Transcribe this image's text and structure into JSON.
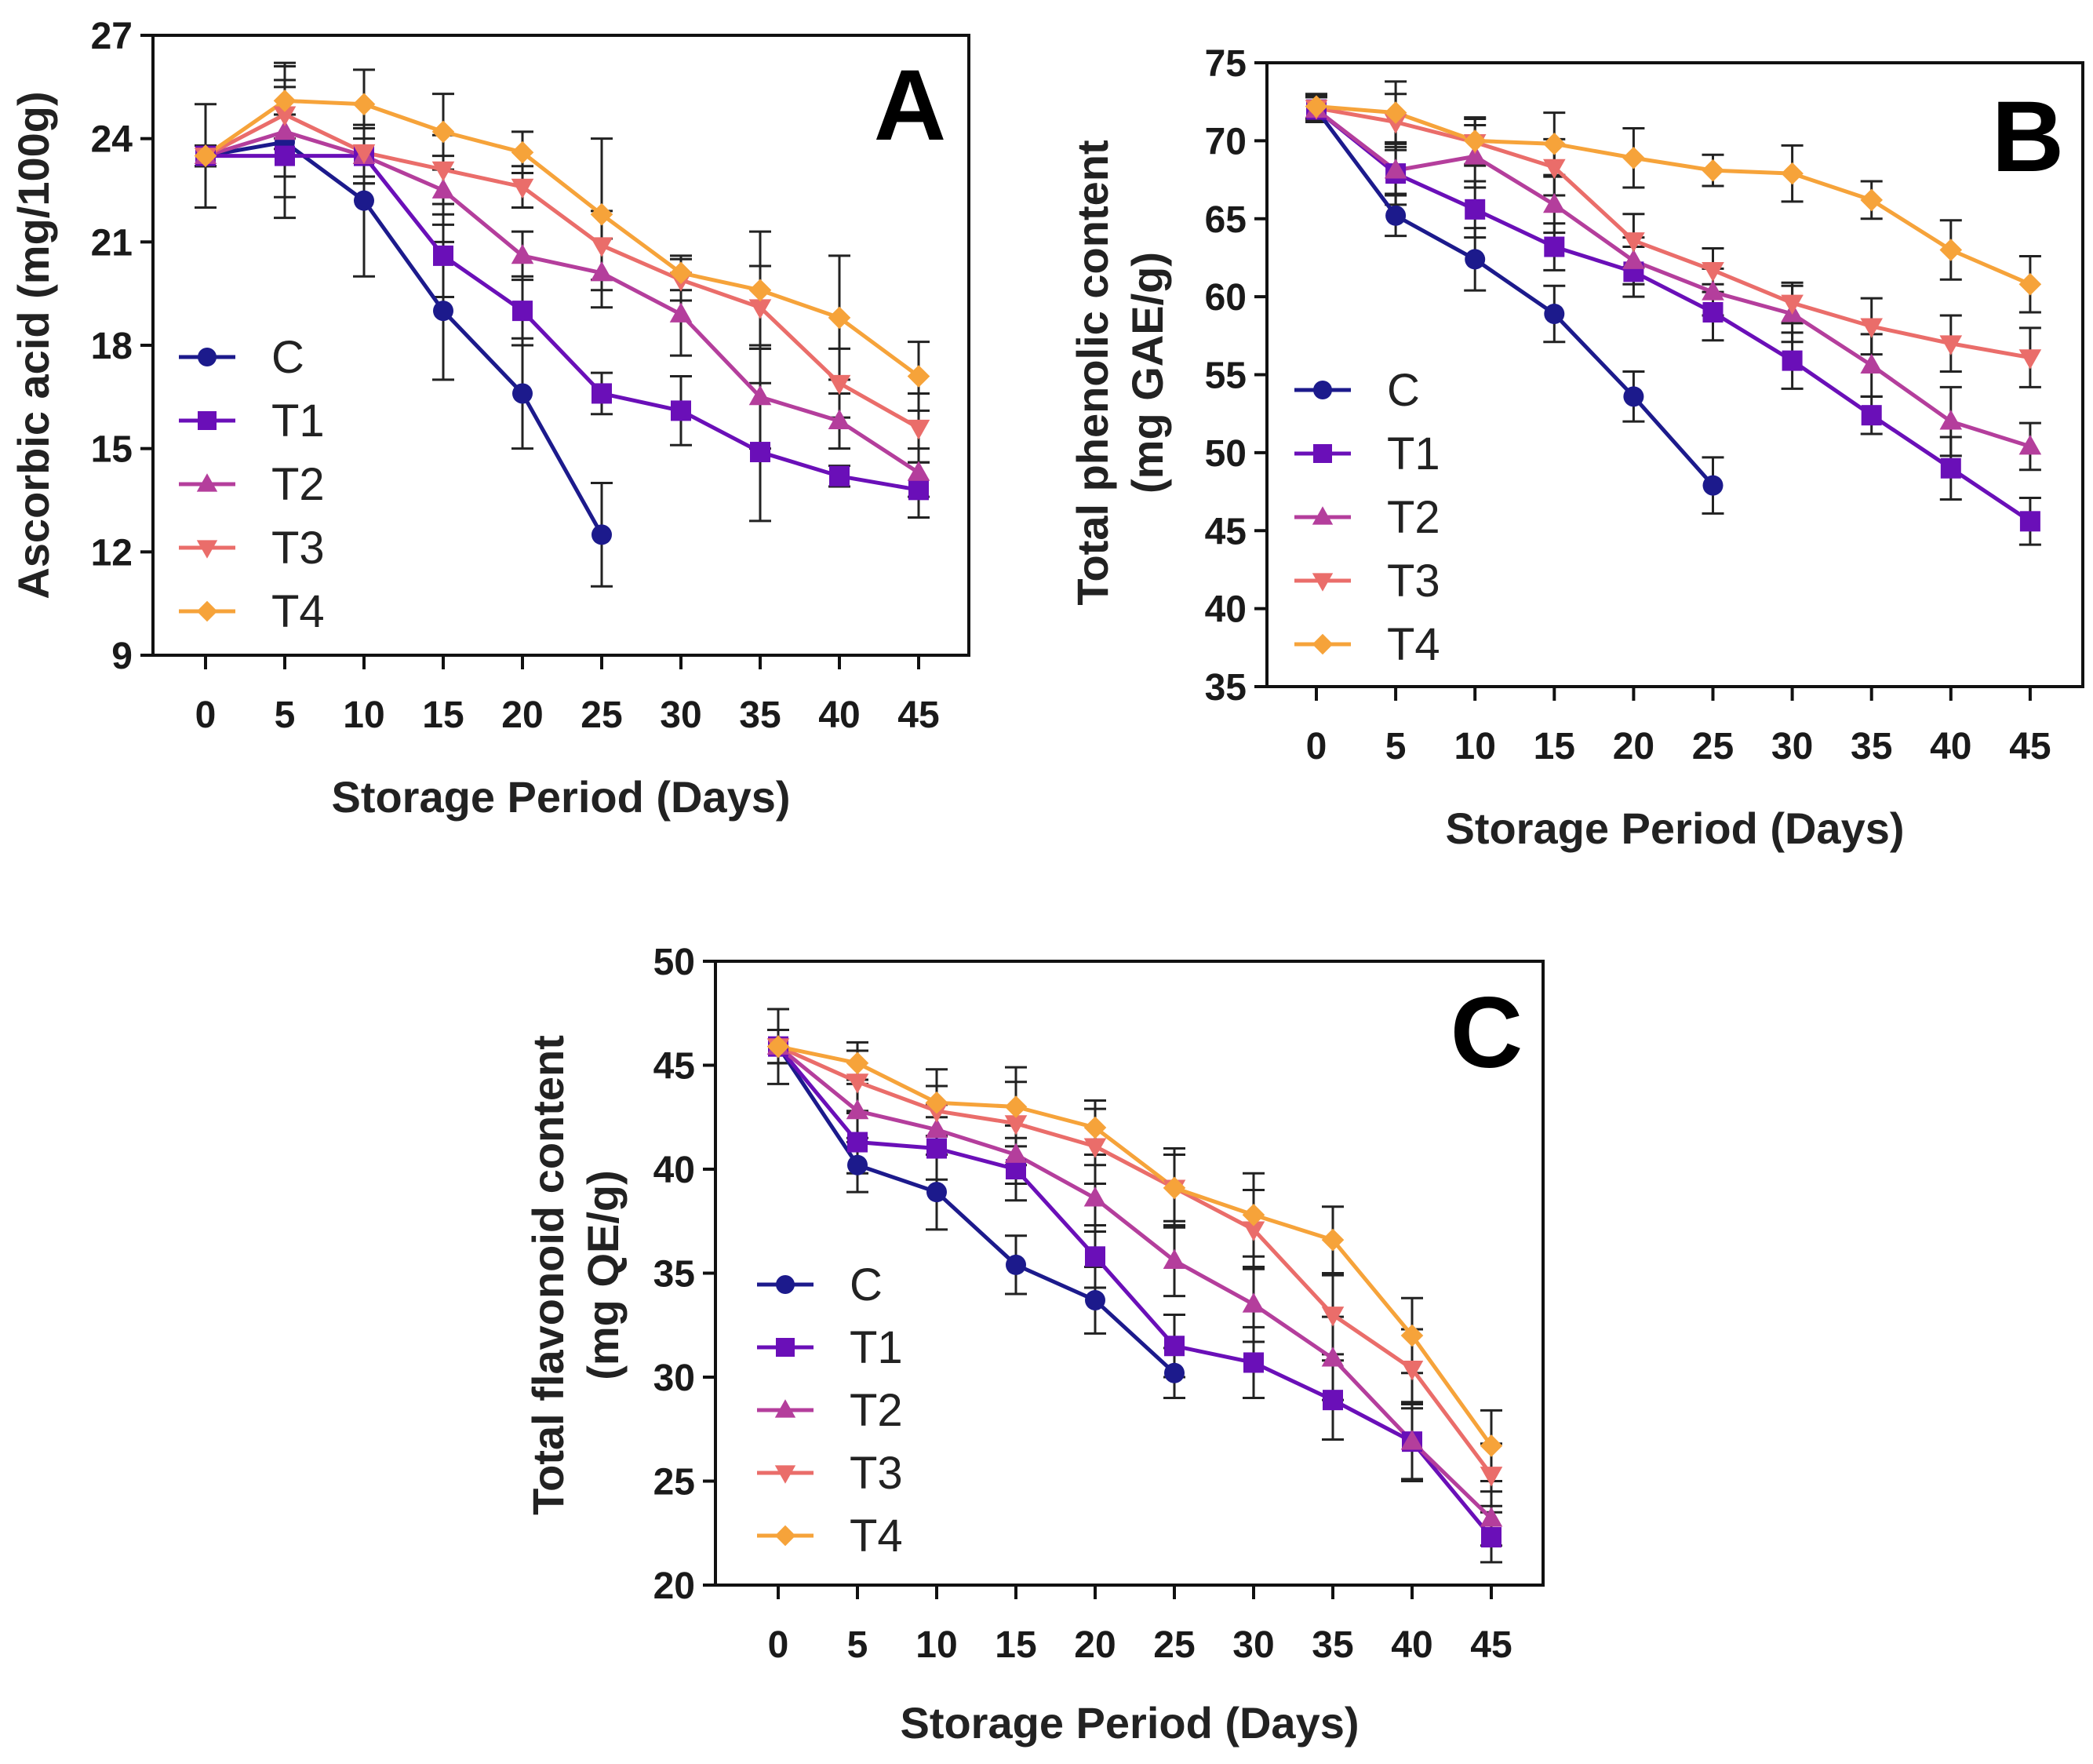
{
  "figure": {
    "series_styles": [
      {
        "name": "C",
        "color": "#1c1a8c",
        "marker": "circle"
      },
      {
        "name": "T1",
        "color": "#6a0fb8",
        "marker": "square"
      },
      {
        "name": "T2",
        "color": "#b43e9c",
        "marker": "triangle-up"
      },
      {
        "name": "T3",
        "color": "#ea6d6a",
        "marker": "triangle-down"
      },
      {
        "name": "T4",
        "color": "#f6a33a",
        "marker": "diamond"
      }
    ]
  },
  "chart_data": [
    {
      "type": "line",
      "panel": "A",
      "title": "",
      "xlabel": "Storage Period (Days)",
      "ylabel": "Ascorbic acid (mg/100g)",
      "x": [
        0,
        5,
        10,
        15,
        20,
        25,
        30,
        35,
        40,
        45
      ],
      "xticks": [
        "0",
        "5",
        "10",
        "15",
        "20",
        "25",
        "30",
        "35",
        "40",
        "45"
      ],
      "ylim": [
        9,
        27
      ],
      "yticks": [
        "9",
        "12",
        "15",
        "18",
        "21",
        "24",
        "27"
      ],
      "legend_position": "left",
      "series": [
        {
          "name": "C",
          "values": [
            23.5,
            23.9,
            22.2,
            19.0,
            16.6,
            12.5,
            null,
            null,
            null,
            null
          ],
          "errors": [
            1.5,
            2.2,
            2.2,
            2.0,
            1.6,
            1.5,
            null,
            null,
            null,
            null
          ]
        },
        {
          "name": "T1",
          "values": [
            23.5,
            23.5,
            23.5,
            20.6,
            19.0,
            16.6,
            16.1,
            14.9,
            14.2,
            13.8
          ],
          "errors": [
            0.3,
            1.2,
            0.8,
            1.2,
            1.0,
            0.6,
            1.0,
            2.0,
            0.3,
            0.8
          ]
        },
        {
          "name": "T2",
          "values": [
            23.5,
            24.2,
            23.5,
            22.5,
            20.6,
            20.1,
            18.9,
            16.5,
            15.8,
            14.3
          ],
          "errors": [
            0.3,
            1.3,
            0.8,
            1.0,
            0.7,
            1.0,
            1.2,
            1.5,
            0.8,
            0.7
          ]
        },
        {
          "name": "T3",
          "values": [
            23.5,
            24.7,
            23.6,
            23.1,
            22.6,
            20.9,
            19.9,
            19.1,
            16.9,
            15.6
          ],
          "errors": [
            0.3,
            1.0,
            0.7,
            1.0,
            0.6,
            1.0,
            0.6,
            1.2,
            1.0,
            1.0
          ]
        },
        {
          "name": "T4",
          "values": [
            23.5,
            25.1,
            25.0,
            24.2,
            23.6,
            21.8,
            20.1,
            19.6,
            18.8,
            17.1
          ],
          "errors": [
            0.3,
            1.1,
            1.0,
            1.1,
            0.6,
            2.2,
            0.5,
            1.7,
            1.8,
            1.0
          ]
        }
      ]
    },
    {
      "type": "line",
      "panel": "B",
      "title": "",
      "xlabel": "Storage Period (Days)",
      "ylabel": "Total phenolic content (mg GAE/g)",
      "ylabel_lines": [
        "Total phenolic content",
        "(mg GAE/g)"
      ],
      "x": [
        0,
        5,
        10,
        15,
        20,
        25,
        30,
        35,
        40,
        45
      ],
      "xticks": [
        "0",
        "5",
        "10",
        "15",
        "20",
        "25",
        "30",
        "35",
        "40",
        "45"
      ],
      "ylim": [
        35,
        75
      ],
      "yticks": [
        "35",
        "40",
        "45",
        "50",
        "55",
        "60",
        "65",
        "70",
        "75"
      ],
      "legend_position": "left",
      "series": [
        {
          "name": "C",
          "values": [
            72.0,
            65.2,
            62.4,
            58.9,
            53.6,
            47.9,
            null,
            null,
            null,
            null
          ],
          "errors": [
            0.8,
            1.3,
            2.0,
            1.8,
            1.6,
            1.8,
            null,
            null,
            null,
            null
          ]
        },
        {
          "name": "T1",
          "values": [
            72.0,
            67.9,
            65.6,
            63.2,
            61.6,
            59.0,
            55.9,
            52.4,
            49.0,
            45.6
          ],
          "errors": [
            0.8,
            2.0,
            1.8,
            1.5,
            1.6,
            1.8,
            1.8,
            1.2,
            2.0,
            1.5
          ]
        },
        {
          "name": "T2",
          "values": [
            72.0,
            68.1,
            69.0,
            65.9,
            62.3,
            60.3,
            58.9,
            55.6,
            52.0,
            50.4
          ],
          "errors": [
            0.8,
            1.5,
            2.0,
            1.8,
            1.5,
            1.5,
            1.8,
            2.0,
            2.2,
            1.5
          ]
        },
        {
          "name": "T3",
          "values": [
            72.1,
            71.2,
            69.9,
            68.3,
            63.6,
            61.7,
            59.6,
            58.1,
            57.0,
            56.1
          ],
          "errors": [
            0.8,
            1.8,
            1.5,
            1.8,
            1.7,
            1.4,
            1.3,
            1.8,
            1.8,
            1.9
          ]
        },
        {
          "name": "T4",
          "values": [
            72.2,
            71.8,
            70.0,
            69.8,
            68.9,
            68.1,
            67.9,
            66.2,
            63.0,
            60.8
          ],
          "errors": [
            0.8,
            2.0,
            1.5,
            2.0,
            1.9,
            1.0,
            1.8,
            1.2,
            1.9,
            1.8
          ]
        }
      ]
    },
    {
      "type": "line",
      "panel": "C",
      "title": "",
      "xlabel": "Storage Period (Days)",
      "ylabel": "Total flavonoid content (mg QE/g)",
      "ylabel_lines": [
        "Total flavonoid content",
        "(mg QE/g)"
      ],
      "x": [
        0,
        5,
        10,
        15,
        20,
        25,
        30,
        35,
        40,
        45
      ],
      "xticks": [
        "0",
        "5",
        "10",
        "15",
        "20",
        "25",
        "30",
        "35",
        "40",
        "45"
      ],
      "ylim": [
        20,
        50
      ],
      "yticks": [
        "20",
        "25",
        "30",
        "35",
        "40",
        "45",
        "50"
      ],
      "legend_position": "left",
      "series": [
        {
          "name": "C",
          "values": [
            45.9,
            40.2,
            38.9,
            35.4,
            33.7,
            30.2,
            null,
            null,
            null,
            null
          ],
          "errors": [
            1.8,
            1.3,
            1.8,
            1.4,
            1.6,
            1.2,
            null,
            null,
            null,
            null
          ]
        },
        {
          "name": "T1",
          "values": [
            45.9,
            41.3,
            41.0,
            40.0,
            35.8,
            31.5,
            30.7,
            28.9,
            26.9,
            22.3
          ],
          "errors": [
            0.8,
            1.5,
            1.5,
            1.5,
            1.5,
            1.5,
            1.7,
            1.9,
            1.8,
            1.2
          ]
        },
        {
          "name": "T2",
          "values": [
            45.9,
            42.8,
            41.9,
            40.7,
            38.6,
            35.6,
            33.5,
            30.9,
            26.9,
            23.2
          ],
          "errors": [
            0.8,
            1.5,
            1.2,
            1.4,
            1.6,
            1.7,
            1.8,
            2.0,
            1.9,
            1.3
          ]
        },
        {
          "name": "T3",
          "values": [
            45.9,
            44.2,
            42.8,
            42.2,
            41.1,
            39.1,
            37.1,
            33.0,
            30.4,
            25.3
          ],
          "errors": [
            0.8,
            1.5,
            1.2,
            2.0,
            1.8,
            1.6,
            1.9,
            1.9,
            1.9,
            1.5
          ]
        },
        {
          "name": "T4",
          "values": [
            45.9,
            45.1,
            43.2,
            43.0,
            42.0,
            39.1,
            37.8,
            36.6,
            32.0,
            26.7
          ],
          "errors": [
            0.8,
            1.0,
            1.6,
            1.9,
            1.3,
            1.9,
            2.0,
            1.6,
            1.8,
            1.7
          ]
        }
      ]
    }
  ]
}
